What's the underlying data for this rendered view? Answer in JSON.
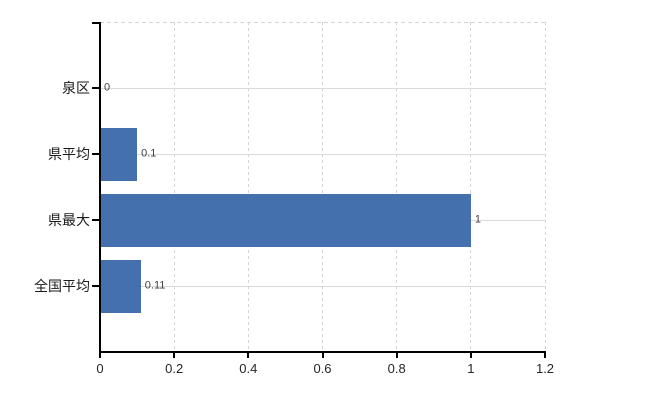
{
  "chart_data": {
    "type": "bar",
    "orientation": "horizontal",
    "title": "",
    "xlabel": "",
    "ylabel": "",
    "categories": [
      "泉区",
      "県平均",
      "県最大",
      "全国平均"
    ],
    "values": [
      0,
      0.1,
      1,
      0.11
    ],
    "value_labels": [
      "0",
      "0.1",
      "1",
      "0.11"
    ],
    "xlim": [
      0,
      1.2
    ],
    "x_ticks": [
      0,
      0.2,
      0.4,
      0.6,
      0.8,
      1,
      1.2
    ],
    "x_tick_labels": [
      "0",
      "0.2",
      "0.4",
      "0.6",
      "0.8",
      "1",
      "1.2"
    ],
    "grid": true,
    "legend": false,
    "colors": {
      "bar": "#4471ad",
      "grid": "#d4d4d4",
      "hgrid": "#dadada",
      "axis": "#000000",
      "value_label": "#404040",
      "tick_label": "#262626",
      "category_label": "#1a1a1a",
      "background": "#ffffff"
    }
  }
}
